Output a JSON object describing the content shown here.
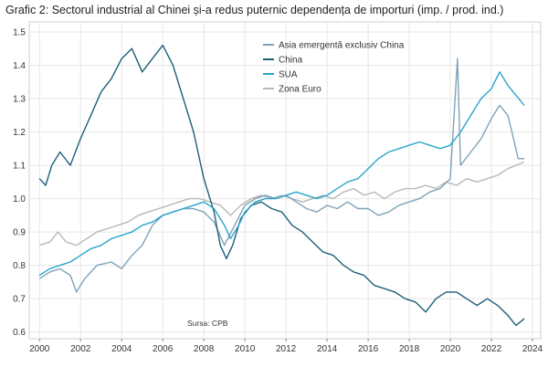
{
  "chart_data": {
    "type": "line",
    "title": "Grafic 2: Sectorul industrial al Chinei și-a redus puternic dependența de importuri (imp. / prod. ind.)",
    "source": "Sursa: CPB",
    "xlim": [
      1999.5,
      2024.4
    ],
    "ylim": [
      0.58,
      1.53
    ],
    "x_ticks": [
      "2000",
      "2002",
      "2004",
      "2006",
      "2008",
      "2010",
      "2012",
      "2014",
      "2016",
      "2018",
      "2020",
      "2022",
      "2024"
    ],
    "y_ticks": [
      "0.6",
      "0.7",
      "0.8",
      "0.9",
      "1.0",
      "1.1",
      "1.2",
      "1.3",
      "1.4",
      "1.5"
    ],
    "grid": true,
    "legend_position": "top-center",
    "series": [
      {
        "name": "Asia emergentă exclusiv China",
        "color": "#7fa3b8",
        "points": [
          [
            2000,
            0.76
          ],
          [
            2000.5,
            0.78
          ],
          [
            2001,
            0.79
          ],
          [
            2001.5,
            0.77
          ],
          [
            2001.8,
            0.72
          ],
          [
            2002.2,
            0.76
          ],
          [
            2002.8,
            0.8
          ],
          [
            2003.5,
            0.81
          ],
          [
            2004,
            0.79
          ],
          [
            2004.5,
            0.83
          ],
          [
            2005,
            0.86
          ],
          [
            2005.5,
            0.92
          ],
          [
            2006,
            0.95
          ],
          [
            2006.5,
            0.96
          ],
          [
            2007,
            0.97
          ],
          [
            2007.5,
            0.97
          ],
          [
            2008,
            0.96
          ],
          [
            2008.5,
            0.93
          ],
          [
            2009,
            0.86
          ],
          [
            2009.5,
            0.92
          ],
          [
            2010,
            0.98
          ],
          [
            2010.5,
            1.0
          ],
          [
            2011,
            1.01
          ],
          [
            2011.5,
            1.0
          ],
          [
            2012,
            1.01
          ],
          [
            2012.5,
            0.99
          ],
          [
            2013,
            0.97
          ],
          [
            2013.5,
            0.96
          ],
          [
            2014,
            0.98
          ],
          [
            2014.5,
            0.97
          ],
          [
            2015,
            0.99
          ],
          [
            2015.5,
            0.97
          ],
          [
            2016,
            0.97
          ],
          [
            2016.5,
            0.95
          ],
          [
            2017,
            0.96
          ],
          [
            2017.5,
            0.98
          ],
          [
            2018,
            0.99
          ],
          [
            2018.5,
            1.0
          ],
          [
            2019,
            1.02
          ],
          [
            2019.5,
            1.03
          ],
          [
            2020,
            1.06
          ],
          [
            2020.35,
            1.42
          ],
          [
            2020.5,
            1.1
          ],
          [
            2021,
            1.14
          ],
          [
            2021.5,
            1.18
          ],
          [
            2022,
            1.24
          ],
          [
            2022.4,
            1.28
          ],
          [
            2022.8,
            1.25
          ],
          [
            2023,
            1.2
          ],
          [
            2023.3,
            1.12
          ],
          [
            2023.6,
            1.12
          ]
        ]
      },
      {
        "name": "China",
        "color": "#1e5f7a",
        "points": [
          [
            2000,
            1.06
          ],
          [
            2000.3,
            1.04
          ],
          [
            2000.6,
            1.1
          ],
          [
            2001,
            1.14
          ],
          [
            2001.5,
            1.1
          ],
          [
            2002,
            1.18
          ],
          [
            2002.5,
            1.25
          ],
          [
            2003,
            1.32
          ],
          [
            2003.5,
            1.36
          ],
          [
            2004,
            1.42
          ],
          [
            2004.5,
            1.45
          ],
          [
            2005,
            1.38
          ],
          [
            2005.5,
            1.42
          ],
          [
            2006,
            1.46
          ],
          [
            2006.5,
            1.4
          ],
          [
            2007,
            1.3
          ],
          [
            2007.5,
            1.2
          ],
          [
            2008,
            1.06
          ],
          [
            2008.5,
            0.96
          ],
          [
            2008.8,
            0.86
          ],
          [
            2009.1,
            0.82
          ],
          [
            2009.4,
            0.86
          ],
          [
            2009.8,
            0.94
          ],
          [
            2010.3,
            0.98
          ],
          [
            2010.8,
            0.99
          ],
          [
            2011.3,
            0.97
          ],
          [
            2011.8,
            0.96
          ],
          [
            2012.3,
            0.92
          ],
          [
            2012.8,
            0.9
          ],
          [
            2013.3,
            0.87
          ],
          [
            2013.8,
            0.84
          ],
          [
            2014.3,
            0.83
          ],
          [
            2014.8,
            0.8
          ],
          [
            2015.3,
            0.78
          ],
          [
            2015.8,
            0.77
          ],
          [
            2016.3,
            0.74
          ],
          [
            2016.8,
            0.73
          ],
          [
            2017.3,
            0.72
          ],
          [
            2017.8,
            0.7
          ],
          [
            2018.3,
            0.69
          ],
          [
            2018.8,
            0.66
          ],
          [
            2019.3,
            0.7
          ],
          [
            2019.8,
            0.72
          ],
          [
            2020.3,
            0.72
          ],
          [
            2020.8,
            0.7
          ],
          [
            2021.3,
            0.68
          ],
          [
            2021.8,
            0.7
          ],
          [
            2022.3,
            0.68
          ],
          [
            2022.8,
            0.65
          ],
          [
            2023.2,
            0.62
          ],
          [
            2023.6,
            0.64
          ]
        ]
      },
      {
        "name": "SUA",
        "color": "#2aa5cc",
        "points": [
          [
            2000,
            0.77
          ],
          [
            2000.5,
            0.79
          ],
          [
            2001,
            0.8
          ],
          [
            2001.5,
            0.81
          ],
          [
            2002,
            0.83
          ],
          [
            2002.5,
            0.85
          ],
          [
            2003,
            0.86
          ],
          [
            2003.5,
            0.88
          ],
          [
            2004,
            0.89
          ],
          [
            2004.5,
            0.9
          ],
          [
            2005,
            0.92
          ],
          [
            2005.5,
            0.93
          ],
          [
            2006,
            0.95
          ],
          [
            2006.5,
            0.96
          ],
          [
            2007,
            0.97
          ],
          [
            2007.5,
            0.98
          ],
          [
            2008,
            0.99
          ],
          [
            2008.5,
            0.97
          ],
          [
            2009,
            0.92
          ],
          [
            2009.3,
            0.88
          ],
          [
            2009.7,
            0.92
          ],
          [
            2010,
            0.96
          ],
          [
            2010.5,
            0.99
          ],
          [
            2011,
            1.0
          ],
          [
            2011.5,
            1.0
          ],
          [
            2012,
            1.01
          ],
          [
            2012.5,
            1.02
          ],
          [
            2013,
            1.01
          ],
          [
            2013.5,
            1.0
          ],
          [
            2014,
            1.01
          ],
          [
            2014.5,
            1.03
          ],
          [
            2015,
            1.05
          ],
          [
            2015.5,
            1.06
          ],
          [
            2016,
            1.09
          ],
          [
            2016.5,
            1.12
          ],
          [
            2017,
            1.14
          ],
          [
            2017.5,
            1.15
          ],
          [
            2018,
            1.16
          ],
          [
            2018.5,
            1.17
          ],
          [
            2019,
            1.16
          ],
          [
            2019.5,
            1.15
          ],
          [
            2020,
            1.16
          ],
          [
            2020.5,
            1.2
          ],
          [
            2021,
            1.25
          ],
          [
            2021.5,
            1.3
          ],
          [
            2022,
            1.33
          ],
          [
            2022.4,
            1.38
          ],
          [
            2022.8,
            1.34
          ],
          [
            2023.2,
            1.31
          ],
          [
            2023.6,
            1.28
          ]
        ]
      },
      {
        "name": "Zona Euro",
        "color": "#b8b8b8",
        "points": [
          [
            2000,
            0.86
          ],
          [
            2000.5,
            0.87
          ],
          [
            2000.9,
            0.9
          ],
          [
            2001.3,
            0.87
          ],
          [
            2001.8,
            0.86
          ],
          [
            2002.3,
            0.88
          ],
          [
            2002.8,
            0.9
          ],
          [
            2003.3,
            0.91
          ],
          [
            2003.8,
            0.92
          ],
          [
            2004.3,
            0.93
          ],
          [
            2004.8,
            0.95
          ],
          [
            2005.3,
            0.96
          ],
          [
            2005.8,
            0.97
          ],
          [
            2006.3,
            0.98
          ],
          [
            2006.8,
            0.99
          ],
          [
            2007.3,
            1.0
          ],
          [
            2007.8,
            1.0
          ],
          [
            2008.3,
            0.99
          ],
          [
            2008.8,
            0.98
          ],
          [
            2009.3,
            0.95
          ],
          [
            2009.8,
            0.98
          ],
          [
            2010.3,
            1.0
          ],
          [
            2010.8,
            1.01
          ],
          [
            2011.3,
            1.0
          ],
          [
            2011.8,
            1.01
          ],
          [
            2012.3,
            1.0
          ],
          [
            2012.8,
            0.99
          ],
          [
            2013.3,
            1.0
          ],
          [
            2013.8,
            1.01
          ],
          [
            2014.3,
            1.0
          ],
          [
            2014.8,
            1.02
          ],
          [
            2015.3,
            1.03
          ],
          [
            2015.8,
            1.01
          ],
          [
            2016.3,
            1.02
          ],
          [
            2016.8,
            1.0
          ],
          [
            2017.3,
            1.02
          ],
          [
            2017.8,
            1.03
          ],
          [
            2018.3,
            1.03
          ],
          [
            2018.8,
            1.04
          ],
          [
            2019.3,
            1.03
          ],
          [
            2019.8,
            1.05
          ],
          [
            2020.3,
            1.04
          ],
          [
            2020.8,
            1.06
          ],
          [
            2021.3,
            1.05
          ],
          [
            2021.8,
            1.06
          ],
          [
            2022.3,
            1.07
          ],
          [
            2022.8,
            1.09
          ],
          [
            2023.2,
            1.1
          ],
          [
            2023.6,
            1.11
          ]
        ]
      }
    ]
  }
}
